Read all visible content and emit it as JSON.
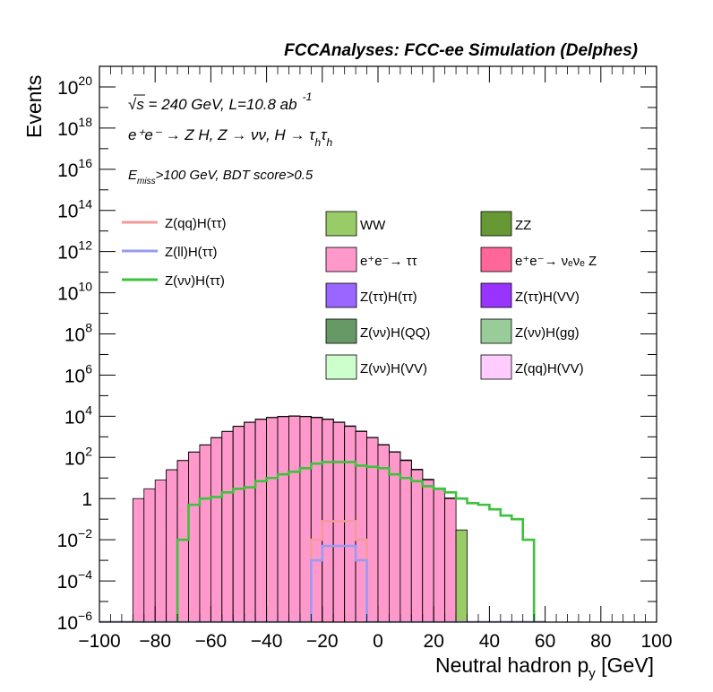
{
  "chart_data": {
    "type": "histogram",
    "title": "FCCAnalyses: FCC-ee Simulation (Delphes)",
    "xlabel": "Neutral hadron p",
    "xlabel_sub": "y",
    "xlabel_unit": " [GeV]",
    "ylabel": "Events",
    "xlim": [
      -100,
      100
    ],
    "ylim": [
      1e-06,
      1e+21
    ],
    "y_scale": "log",
    "x_ticks": [
      -100,
      -80,
      -60,
      -40,
      -20,
      0,
      20,
      40,
      60,
      80,
      100
    ],
    "y_ticks": [
      {
        "value": 1e-06,
        "base": "10",
        "exp": "-6"
      },
      {
        "value": 0.0001,
        "base": "10",
        "exp": "-4"
      },
      {
        "value": 0.01,
        "base": "10",
        "exp": "-2"
      },
      {
        "value": 1,
        "base": "1",
        "exp": ""
      },
      {
        "value": 100.0,
        "base": "10",
        "exp": "2"
      },
      {
        "value": 10000.0,
        "base": "10",
        "exp": "4"
      },
      {
        "value": 1000000.0,
        "base": "10",
        "exp": "6"
      },
      {
        "value": 100000000.0,
        "base": "10",
        "exp": "8"
      },
      {
        "value": 10000000000.0,
        "base": "10",
        "exp": "10"
      },
      {
        "value": 1000000000000.0,
        "base": "10",
        "exp": "12"
      },
      {
        "value": 100000000000000.0,
        "base": "10",
        "exp": "14"
      },
      {
        "value": 1e+16,
        "base": "10",
        "exp": "16"
      },
      {
        "value": 1e+18,
        "base": "10",
        "exp": "18"
      },
      {
        "value": 1e+20,
        "base": "10",
        "exp": "20"
      }
    ],
    "annotations": {
      "energy_line": "√s = 240 GeV, L=10.8 ab",
      "energy_sup": "-1",
      "process_line": "e⁺e⁻ → Z H, Z → νν, H → τ",
      "cuts_prefix": "E",
      "cuts_sub": "miss",
      "cuts_rest": ">100 GeV, BDT score>0.5"
    },
    "legend_lines": [
      {
        "name": "Z(qq)H(ττ)",
        "color": "#f59a9a"
      },
      {
        "name": "Z(ll)H(ττ)",
        "color": "#9a9af5"
      },
      {
        "name": "Z(νν)H(ττ)",
        "color": "#3cc23c"
      }
    ],
    "legend_boxes": [
      {
        "name": "WW",
        "color": "#99cc66"
      },
      {
        "name": "ZZ",
        "color": "#669933"
      },
      {
        "name": "e⁺e⁻→ ττ",
        "color": "#ff99cc"
      },
      {
        "name": "e⁺e⁻→ νₑνₑ Z",
        "color": "#ff6699"
      },
      {
        "name": "Z(ττ)H(ττ)",
        "color": "#9966ff"
      },
      {
        "name": "Z(ττ)H(VV)",
        "color": "#9933ff"
      },
      {
        "name": "Z(νν)H(QQ)",
        "color": "#669966"
      },
      {
        "name": "Z(νν)H(gg)",
        "color": "#99cc99"
      },
      {
        "name": "Z(νν)H(VV)",
        "color": "#ccffcc"
      },
      {
        "name": "Z(qq)H(VV)",
        "color": "#ffccff"
      }
    ],
    "bin_edges_start": -100,
    "bin_width": 4,
    "stack_series": [
      {
        "name": "e⁺e⁻→ ττ",
        "color": "#ff99cc",
        "values": [
          0,
          0,
          0,
          1.0,
          3.0,
          8.0,
          25,
          70,
          180,
          400,
          900,
          1800,
          3200,
          5000,
          7000,
          8500,
          9500,
          10000,
          9500,
          8500,
          7000,
          5000,
          3200,
          1800,
          900,
          400,
          180,
          70,
          25,
          8.0,
          3.0,
          1.0,
          0,
          0,
          0,
          0,
          0,
          0,
          0,
          0
        ]
      },
      {
        "name": "WW",
        "color": "#99cc66",
        "values": [
          0,
          0,
          0,
          0,
          0,
          0,
          0.2,
          0.8,
          2.5,
          6,
          12,
          22,
          40,
          70,
          110,
          160,
          210,
          250,
          270,
          260,
          230,
          190,
          130,
          80,
          40,
          20,
          9,
          4,
          1.5,
          0.6,
          0.3,
          0.08,
          0.03,
          0,
          0,
          0,
          0,
          0,
          0,
          0
        ]
      },
      {
        "name": "ZZ",
        "color": "#669933",
        "values": [
          0,
          0,
          0,
          0,
          0,
          0,
          0,
          0.05,
          0.3,
          1.0,
          2.5,
          5,
          9,
          15,
          22,
          28,
          33,
          36,
          34,
          30,
          24,
          17,
          10,
          5.5,
          2.5,
          1.0,
          0.5,
          0.25,
          0.1,
          0.02,
          0,
          0,
          0,
          0,
          0,
          0,
          0,
          0,
          0,
          0
        ]
      },
      {
        "name": "e⁺e⁻→ νₑνₑ Z",
        "color": "#ff6699",
        "values": [
          0,
          0,
          0,
          0,
          0,
          0,
          0,
          0,
          0,
          0,
          0,
          0.02,
          0.05,
          0.2,
          1.0,
          2.5,
          5,
          6,
          5,
          3,
          1.2,
          0.3,
          0.1,
          0.05,
          0.02,
          0,
          0,
          0,
          0,
          0,
          0,
          0,
          0,
          0,
          0,
          0,
          0,
          0,
          0,
          0
        ]
      },
      {
        "name": "Z(νν)H(QQ)",
        "color": "#669966",
        "values": [
          0,
          0,
          0,
          0,
          0,
          0,
          0,
          0,
          0.02,
          0.01,
          0.005,
          0.01,
          0.005,
          0.003,
          0.05,
          0.1,
          0.2,
          0.25,
          0.2,
          0.1,
          0.06,
          0.02,
          0.01,
          0.005,
          0.003,
          0.002,
          0.001,
          0.0005,
          0,
          0,
          0,
          0,
          0,
          0,
          0,
          0,
          0,
          0,
          0,
          0
        ]
      },
      {
        "name": "Z(ττ)H(ττ)",
        "color": "#9966ff",
        "values": [
          0,
          0,
          0,
          0,
          0,
          0,
          0,
          0,
          0,
          0,
          0,
          0,
          0,
          0.002,
          0.01,
          0.03,
          0.05,
          0.06,
          0.05,
          0.03,
          0.01,
          0.003,
          0.001,
          0,
          0,
          0,
          0,
          0,
          0,
          0,
          0,
          0,
          0,
          0,
          0,
          0,
          0,
          0,
          0,
          0
        ]
      }
    ],
    "line_series": [
      {
        "name": "Z(νν)H(ττ)",
        "color": "#3cc23c",
        "values": [
          0,
          0,
          0,
          0,
          0,
          0,
          0,
          0.01,
          0.5,
          1.0,
          1.2,
          2.0,
          3.0,
          3.5,
          7,
          10,
          15,
          20,
          30,
          50,
          60,
          60,
          60,
          40,
          35,
          30,
          15,
          10,
          7,
          4,
          3,
          2,
          1.0,
          0.6,
          0.5,
          0.3,
          0.15,
          0.1,
          0.01,
          0
        ]
      },
      {
        "name": "Z(qq)H(ττ)",
        "color": "#f59a9a",
        "values": [
          0,
          0,
          0,
          0,
          0,
          0,
          0,
          0,
          0,
          0,
          0,
          0,
          0,
          0,
          0,
          0,
          0,
          0,
          0,
          0.01,
          0.08,
          0.08,
          0.08,
          0.01,
          0,
          0,
          0,
          0,
          0,
          0,
          0,
          0,
          0,
          0,
          0,
          0,
          0,
          0,
          0,
          0
        ]
      },
      {
        "name": "Z(ll)H(ττ)",
        "color": "#9a9af5",
        "values": [
          0,
          0,
          0,
          0,
          0,
          0,
          0,
          0,
          0,
          0,
          0,
          0,
          0,
          0,
          0,
          0,
          0,
          0,
          0,
          0.001,
          0.005,
          0.005,
          0.005,
          0.001,
          0,
          0,
          0,
          0,
          0,
          0,
          0,
          0,
          0,
          0,
          0,
          0,
          0,
          0,
          0,
          0
        ]
      }
    ]
  }
}
